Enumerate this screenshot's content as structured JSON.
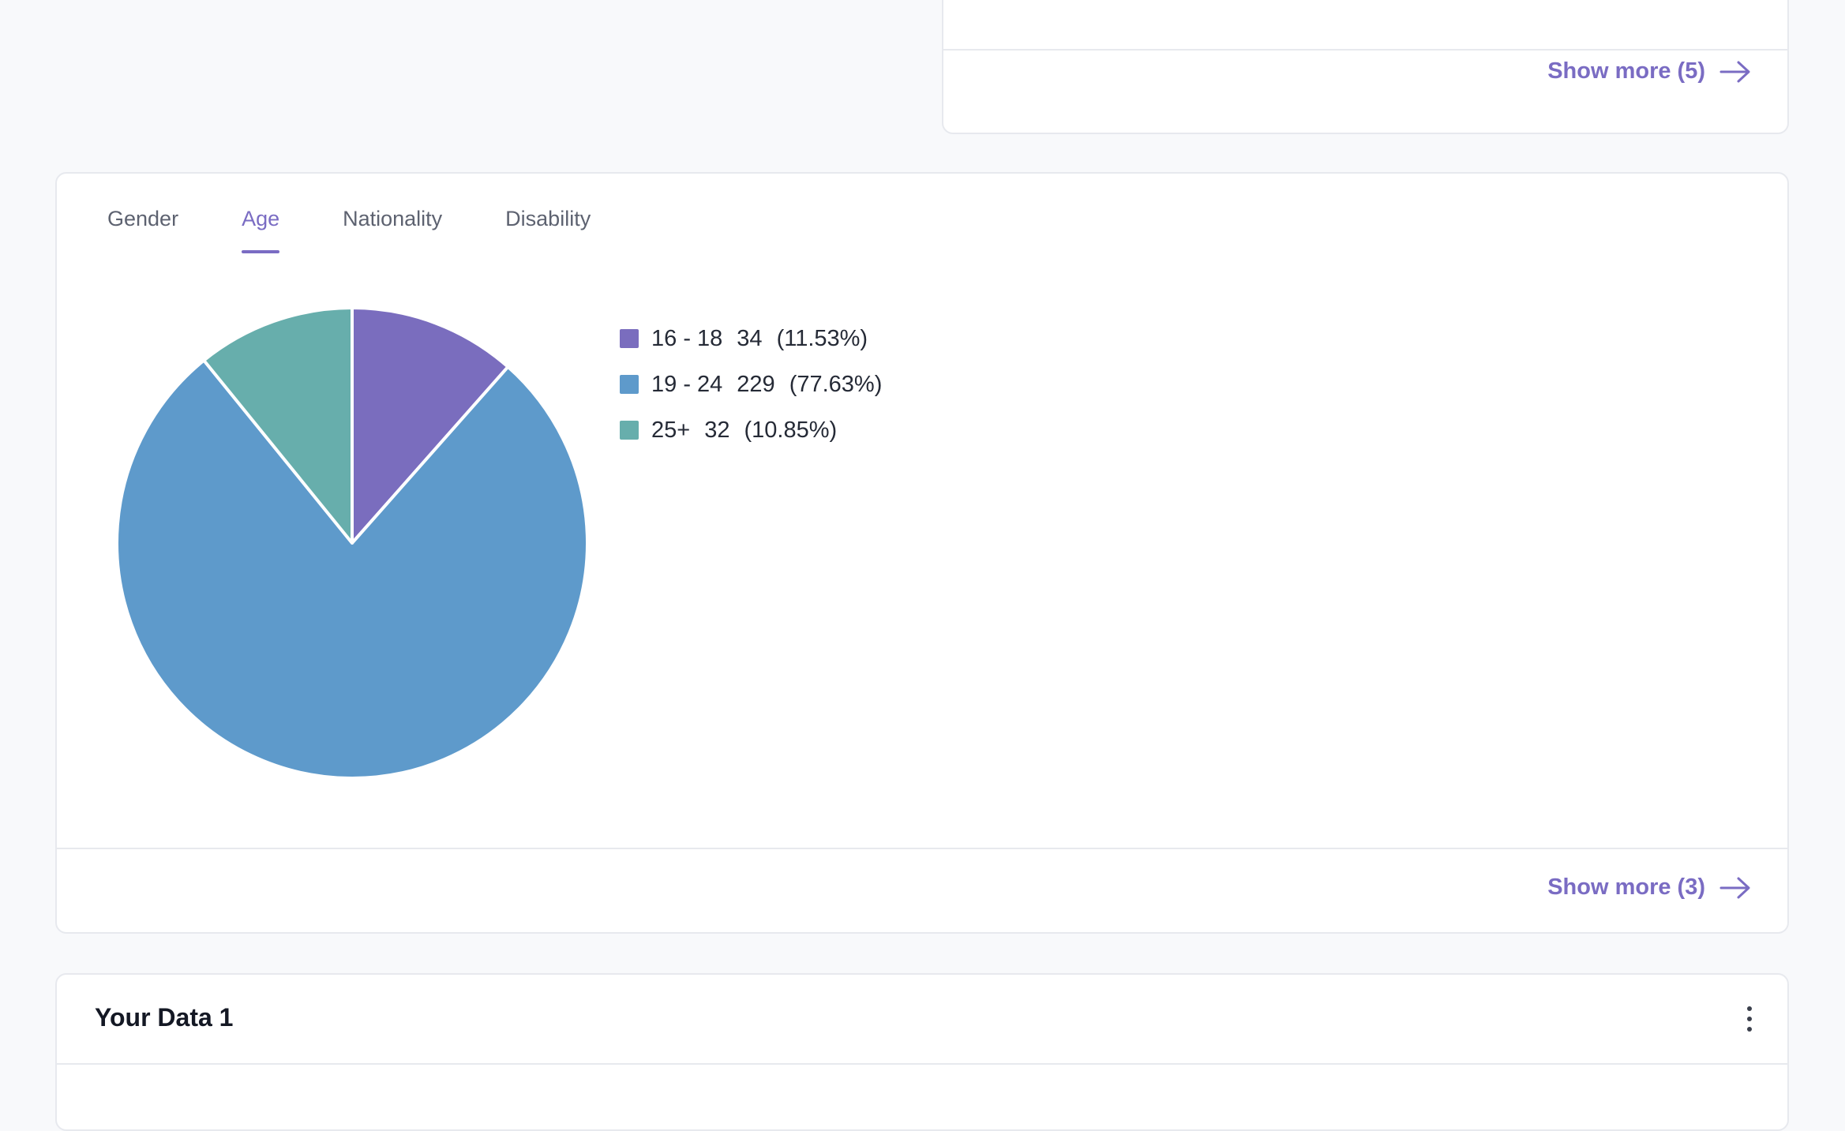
{
  "top_card": {
    "show_more_label": "Show more (5)"
  },
  "demographics": {
    "tabs": [
      {
        "label": "Gender",
        "active": false
      },
      {
        "label": "Age",
        "active": true
      },
      {
        "label": "Nationality",
        "active": false
      },
      {
        "label": "Disability",
        "active": false
      }
    ],
    "show_more_label": "Show more (3)"
  },
  "chart_data": {
    "type": "pie",
    "categories": [
      "16 - 18",
      "19 - 24",
      "25+"
    ],
    "values": [
      34,
      229,
      32
    ],
    "percent_labels": [
      "(11.53%)",
      "(77.63%)",
      "(10.85%)"
    ],
    "colors": [
      "#7a6dbe",
      "#5e9acb",
      "#67aeac"
    ]
  },
  "data_card": {
    "title": "Your Data 1"
  },
  "colors": {
    "accent": "#7a6cc3",
    "border": "#e7e9ee"
  }
}
